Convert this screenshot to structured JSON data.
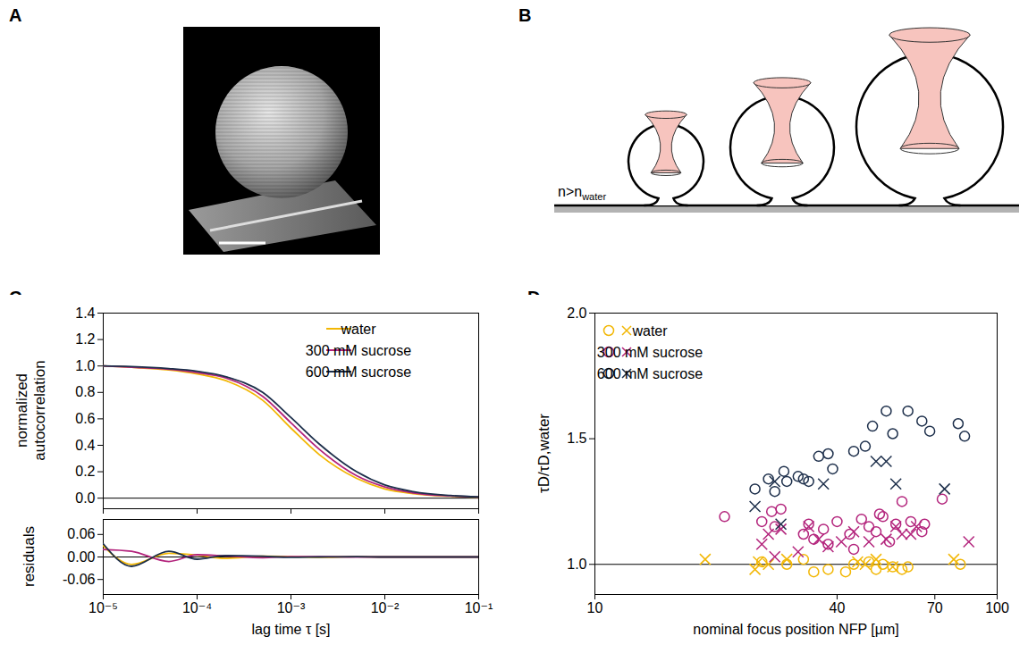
{
  "panels": [
    {
      "panel": "A"
    },
    {
      "panel": "B",
      "label": "n>n",
      "label_subscript": "water"
    }
  ],
  "chart_data": [
    {
      "panel": "C",
      "type": "line",
      "y_label": "normalized autocorrelation",
      "log": "x",
      "xlim": [
        1e-05,
        0.1
      ],
      "xticks": [
        {
          "value": 1e-05,
          "label": "10⁻⁵"
        },
        {
          "value": 0.0001,
          "label": "10⁻⁴"
        },
        {
          "value": 0.001,
          "label": "10⁻³"
        },
        {
          "value": 0.01,
          "label": "10⁻²"
        },
        {
          "value": 0.1,
          "label": "10⁻¹"
        }
      ],
      "tick_labels": "y",
      "ylim": [
        -0.08,
        1.4
      ],
      "yticks": [
        {
          "value": 0,
          "label": "0.0"
        },
        0.2,
        0.4,
        0.6,
        0.8,
        {
          "value": 1,
          "label": "1.0"
        },
        1.2,
        1.4
      ],
      "baseline": 0,
      "legend": "top-right",
      "x": [
        1e-05,
        2e-05,
        5e-05,
        0.0001,
        0.0002,
        0.0005,
        0.001,
        0.002,
        0.005,
        0.01,
        0.02,
        0.05,
        0.1
      ],
      "series": [
        {
          "name": "water",
          "color": "#f2b705",
          "values": [
            1.0,
            0.99,
            0.97,
            0.94,
            0.89,
            0.74,
            0.53,
            0.33,
            0.15,
            0.07,
            0.035,
            0.015,
            0.008
          ]
        },
        {
          "name": "300 mM sucrose",
          "color": "#b3247c",
          "values": [
            1.0,
            0.99,
            0.975,
            0.95,
            0.91,
            0.77,
            0.57,
            0.37,
            0.17,
            0.085,
            0.04,
            0.017,
            0.009
          ]
        },
        {
          "name": "600 mM sucrose",
          "color": "#1d2f4b",
          "values": [
            1.0,
            0.995,
            0.98,
            0.96,
            0.92,
            0.8,
            0.61,
            0.41,
            0.2,
            0.1,
            0.05,
            0.02,
            0.01
          ]
        }
      ]
    },
    {
      "type": "line",
      "y_label": "residuals",
      "x_label": "lag time τ [s]",
      "log": "x",
      "xlim": [
        1e-05,
        0.1
      ],
      "xticks": [
        {
          "value": 1e-05,
          "label": "10⁻⁵"
        },
        {
          "value": 0.0001,
          "label": "10⁻⁴"
        },
        {
          "value": 0.001,
          "label": "10⁻³"
        },
        {
          "value": 0.01,
          "label": "10⁻²"
        },
        {
          "value": 0.1,
          "label": "10⁻¹"
        }
      ],
      "ylim": [
        -0.1,
        0.1
      ],
      "yticks": [
        {
          "value": -0.06,
          "label": "-0.06"
        },
        {
          "value": 0,
          "label": "0.00"
        },
        0.06
      ],
      "baseline": 0,
      "x": [
        1e-05,
        2e-05,
        5e-05,
        0.0001,
        0.0002,
        0.0005,
        0.001,
        0.002,
        0.005,
        0.01,
        0.02,
        0.05,
        0.1
      ],
      "series": [
        {
          "name": "water",
          "color": "#f2b705",
          "values": [
            0.03,
            -0.02,
            0.01,
            0.005,
            -0.004,
            0.002,
            0.001,
            -0.001,
            0.001,
            0.0,
            0.0,
            0.0,
            0.0
          ]
        },
        {
          "name": "300 mM sucrose",
          "color": "#b3247c",
          "values": [
            0.02,
            0.015,
            -0.012,
            0.006,
            0.003,
            -0.002,
            0.001,
            0.001,
            0.0,
            0.0,
            0.0,
            0.0,
            0.0
          ]
        },
        {
          "name": "600 mM sucrose",
          "color": "#1d2f4b",
          "values": [
            0.035,
            -0.025,
            0.015,
            -0.006,
            0.004,
            0.002,
            -0.001,
            0.0,
            0.001,
            0.0,
            0.0,
            0.0,
            0.0
          ]
        }
      ]
    },
    {
      "panel": "D",
      "type": "scatter",
      "y_label": "τD/τD,water",
      "x_label": "nominal focus position NFP [µm]",
      "log": "x",
      "xlim": [
        10,
        100
      ],
      "xticks": [
        10,
        40,
        70,
        100
      ],
      "ylim": [
        0.88,
        2.0
      ],
      "yticks": [
        {
          "value": 1,
          "label": "1.0"
        },
        {
          "value": 1.5,
          "label": "1.5"
        },
        {
          "value": 2,
          "label": "2.0"
        }
      ],
      "baseline": 1,
      "legend": "top-left",
      "series": [
        {
          "name": "water",
          "color": "#f2b705",
          "marker": "circle",
          "x": [
            26,
            30,
            33,
            35,
            38,
            42,
            44,
            48,
            50,
            52,
            55,
            58,
            60,
            81
          ],
          "values": [
            1.01,
            1.0,
            1.02,
            0.97,
            0.98,
            0.97,
            1.0,
            1.01,
            0.98,
            1.0,
            0.99,
            0.98,
            0.99,
            1.0
          ]
        },
        {
          "name": "water",
          "color": "#f2b705",
          "marker": "x",
          "x": [
            18.8,
            25,
            25.5,
            27,
            30,
            45,
            47,
            50,
            55,
            78
          ],
          "values": [
            1.02,
            0.98,
            1.01,
            1.0,
            1.02,
            1.01,
            1.0,
            1.02,
            0.99,
            1.02
          ]
        },
        {
          "name": "300 mM sucrose",
          "color": "#b3247c",
          "marker": "circle",
          "x": [
            21,
            26,
            27.5,
            28,
            29,
            33,
            34,
            35,
            37,
            38,
            40,
            43,
            44,
            46,
            48,
            50,
            51,
            52,
            54,
            56,
            58,
            61,
            65,
            66,
            73
          ],
          "values": [
            1.19,
            1.17,
            1.21,
            1.15,
            1.22,
            1.12,
            1.16,
            1.1,
            1.14,
            1.08,
            1.17,
            1.12,
            1.06,
            1.18,
            1.15,
            1.13,
            1.2,
            1.19,
            1.09,
            1.16,
            1.25,
            1.17,
            1.13,
            1.16,
            1.26
          ]
        },
        {
          "name": "300 mM sucrose",
          "color": "#b3247c",
          "marker": "x",
          "x": [
            26,
            27,
            28,
            29,
            32,
            34,
            36,
            38,
            41,
            44,
            48,
            53,
            56,
            58,
            61,
            63,
            85
          ],
          "values": [
            1.08,
            1.12,
            1.03,
            1.14,
            1.05,
            1.15,
            1.1,
            1.07,
            1.09,
            1.13,
            1.09,
            1.1,
            1.15,
            1.12,
            1.12,
            1.15,
            1.09
          ]
        },
        {
          "name": "600 mM sucrose",
          "color": "#1d2f4b",
          "marker": "circle",
          "x": [
            25,
            27,
            28,
            29.5,
            30,
            32,
            33,
            34,
            36,
            38,
            39,
            44,
            47,
            49,
            53,
            55,
            60,
            65,
            68,
            80,
            83
          ],
          "values": [
            1.3,
            1.34,
            1.29,
            1.37,
            1.33,
            1.35,
            1.34,
            1.33,
            1.43,
            1.44,
            1.38,
            1.45,
            1.47,
            1.55,
            1.61,
            1.52,
            1.61,
            1.57,
            1.53,
            1.56,
            1.51
          ]
        },
        {
          "name": "600 mM sucrose",
          "color": "#1d2f4b",
          "marker": "x",
          "x": [
            25,
            28,
            29,
            37,
            50,
            53,
            56,
            74
          ],
          "values": [
            1.23,
            1.33,
            1.16,
            1.32,
            1.41,
            1.41,
            1.32,
            1.3
          ]
        }
      ]
    }
  ]
}
